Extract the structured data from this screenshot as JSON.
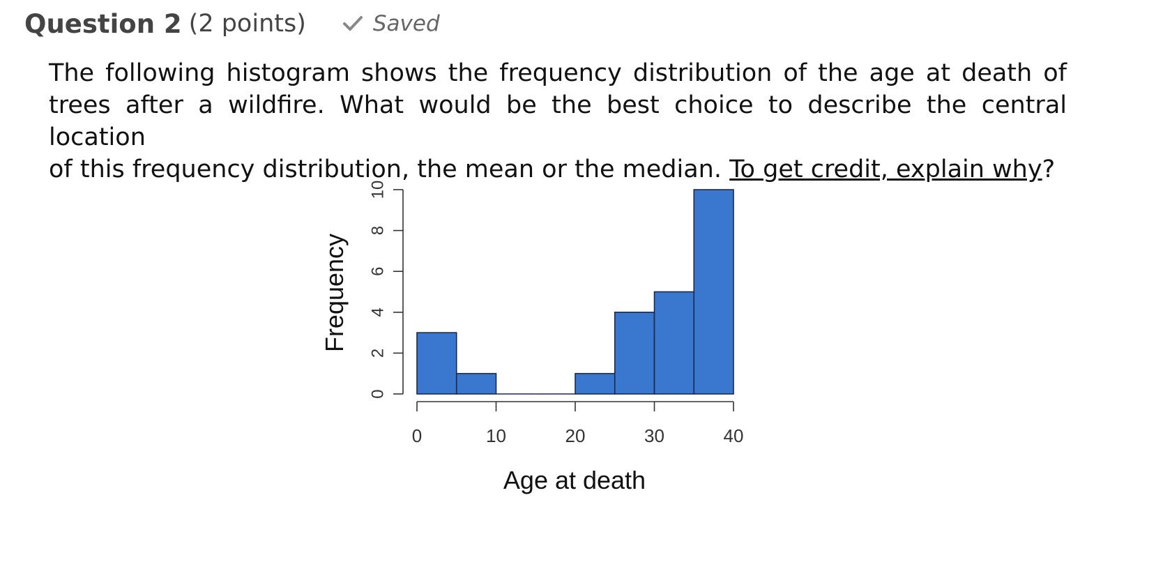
{
  "question": {
    "title": "Question 2",
    "points": "(2 points)",
    "status": "Saved",
    "status_icon": "checkmark-icon"
  },
  "prompt": {
    "line1": "The following histogram shows the frequency distribution of the age at death of",
    "line2": "trees after a wildfire.  What would be the best choice to describe the central location",
    "line3_text": "of this frequency distribution, the mean or the median. ",
    "line3_link": "To get credit, explain why",
    "line3_end": "?"
  },
  "colors": {
    "bar_fill": "#3a78cf",
    "bar_stroke": "#1a2a4a",
    "axis": "#333333"
  },
  "chart_data": {
    "type": "bar",
    "title": "",
    "xlabel": "Age at death",
    "ylabel": "Frequency",
    "bin_edges": [
      0,
      5,
      10,
      15,
      20,
      25,
      30,
      35,
      40
    ],
    "values": [
      3,
      1,
      0,
      0,
      1,
      4,
      5,
      10
    ],
    "xlim": [
      0,
      40
    ],
    "ylim": [
      0,
      10
    ],
    "x_ticks": [
      0,
      10,
      20,
      30,
      40
    ],
    "y_ticks": [
      0,
      2,
      4,
      6,
      8,
      10
    ]
  }
}
